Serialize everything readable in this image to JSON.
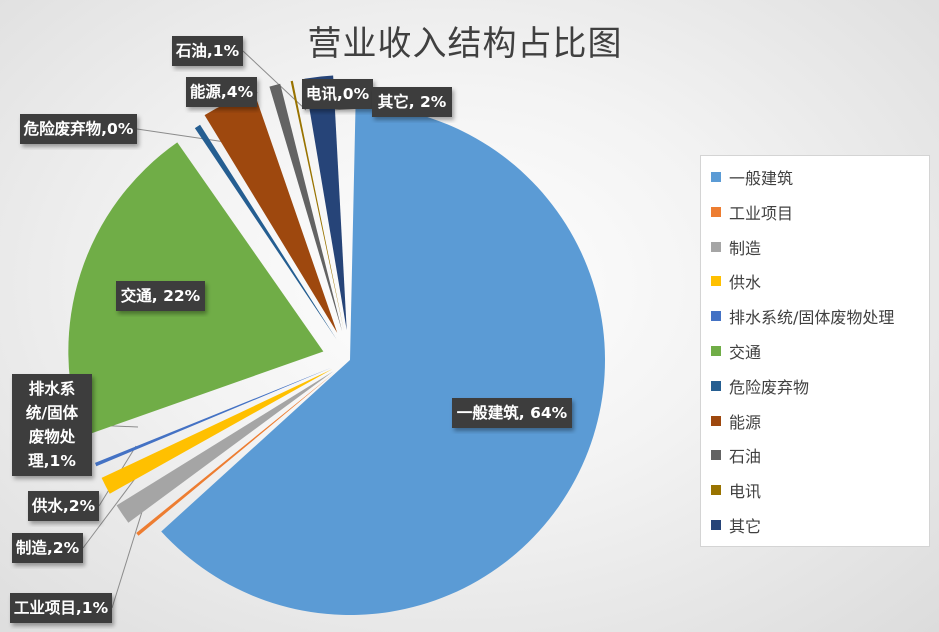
{
  "chart_data": {
    "type": "pie",
    "title": "营业收入结构占比图",
    "legend_position": "right",
    "slices": [
      {
        "name": "一般建筑",
        "value": 64,
        "label": "一般建筑, 64%",
        "color": "#5b9bd5"
      },
      {
        "name": "工业项目",
        "value": 1,
        "label": "工业项目,1%",
        "color": "#ed7d31"
      },
      {
        "name": "制造",
        "value": 2,
        "label": "制造,2%",
        "color": "#a5a5a5"
      },
      {
        "name": "供水",
        "value": 2,
        "label": "供水,2%",
        "color": "#ffc000"
      },
      {
        "name": "排水系统/固体废物处理",
        "value": 1,
        "label": "排水系统/固体废物处理,1%",
        "color": "#4472c4"
      },
      {
        "name": "交通",
        "value": 22,
        "label": "交通, 22%",
        "color": "#70ad47"
      },
      {
        "name": "危险废弃物",
        "value": 0,
        "label": "危险废弃物,0%",
        "color": "#255e91"
      },
      {
        "name": "能源",
        "value": 4,
        "label": "能源,4%",
        "color": "#9e480e"
      },
      {
        "name": "石油",
        "value": 1,
        "label": "石油,1%",
        "color": "#636363"
      },
      {
        "name": "电讯",
        "value": 0,
        "label": "电讯,0%",
        "color": "#997300"
      },
      {
        "name": "其它",
        "value": 2,
        "label": "其它, 2%",
        "color": "#264478"
      }
    ]
  }
}
